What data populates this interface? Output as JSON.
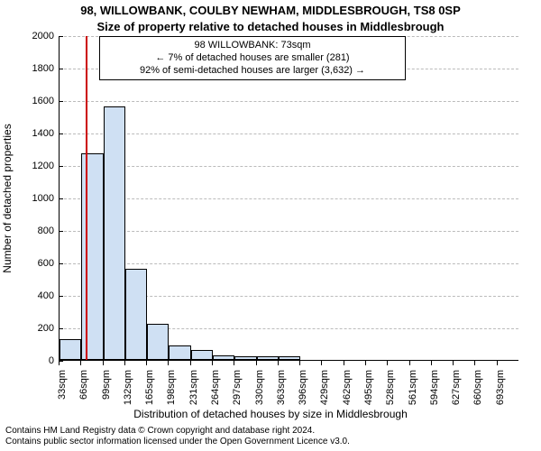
{
  "title_line1": "98, WILLOWBANK, COULBY NEWHAM, MIDDLESBROUGH, TS8 0SP",
  "title_line2": "Size of property relative to detached houses in Middlesbrough",
  "annotation": {
    "line1": "98 WILLOWBANK: 73sqm",
    "line2": "← 7% of detached houses are smaller (281)",
    "line3": "92% of semi-detached houses are larger (3,632) →"
  },
  "chart": {
    "type": "histogram",
    "ylabel": "Number of detached properties",
    "xlabel": "Distribution of detached houses by size in Middlesbrough",
    "ylim": [
      0,
      2000
    ],
    "ytick_step": 200,
    "background_color": "#ffffff",
    "grid_color": "#bbbbbb",
    "bar_fill": "#cfe0f3",
    "bar_border": "#000000",
    "marker_color": "#cc0000",
    "marker_x_value": 73,
    "x_start": 33,
    "x_step": 33,
    "x_ticks": 21,
    "x_unit": "sqm",
    "values": [
      130,
      1270,
      1560,
      560,
      220,
      90,
      60,
      30,
      20,
      20,
      20,
      0,
      0,
      0,
      0,
      0,
      0,
      0,
      0,
      0,
      0
    ]
  },
  "footer": {
    "line1": "Contains HM Land Registry data © Crown copyright and database right 2024.",
    "line2": "Contains public sector information licensed under the Open Government Licence v3.0."
  }
}
